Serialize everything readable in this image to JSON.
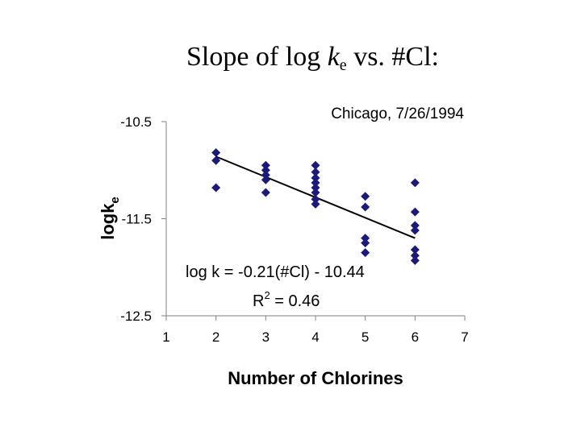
{
  "slide": {
    "title_prefix": "Slope of log ",
    "title_k": "k",
    "title_sub": "e",
    "title_suffix": " vs. #Cl:"
  },
  "chart_data": {
    "type": "scatter",
    "subtitle": "Chicago, 7/26/1994",
    "xlabel": "Number of Chlorines",
    "ylabel_main": "logk",
    "ylabel_sub": "e",
    "xlim": [
      1,
      7
    ],
    "ylim": [
      -12.5,
      -10.5
    ],
    "x_ticks": [
      1,
      2,
      3,
      4,
      5,
      6,
      7
    ],
    "y_ticks": [
      -10.5,
      -11.5,
      -12.5
    ],
    "x_tick_labels": [
      "1",
      "2",
      "3",
      "4",
      "5",
      "6",
      "7"
    ],
    "y_tick_labels": [
      "-10.5",
      "-11.5",
      "-12.5"
    ],
    "grid": false,
    "marker": "diamond",
    "marker_color": "#1a1a7a",
    "points": [
      {
        "x": 2,
        "y": -10.82
      },
      {
        "x": 2,
        "y": -10.9
      },
      {
        "x": 2,
        "y": -11.18
      },
      {
        "x": 3,
        "y": -10.95
      },
      {
        "x": 3,
        "y": -11.0
      },
      {
        "x": 3,
        "y": -11.05
      },
      {
        "x": 3,
        "y": -11.1
      },
      {
        "x": 3,
        "y": -11.23
      },
      {
        "x": 4,
        "y": -10.95
      },
      {
        "x": 4,
        "y": -11.02
      },
      {
        "x": 4,
        "y": -11.08
      },
      {
        "x": 4,
        "y": -11.13
      },
      {
        "x": 4,
        "y": -11.18
      },
      {
        "x": 4,
        "y": -11.23
      },
      {
        "x": 4,
        "y": -11.3
      },
      {
        "x": 4,
        "y": -11.35
      },
      {
        "x": 5,
        "y": -11.27
      },
      {
        "x": 5,
        "y": -11.38
      },
      {
        "x": 5,
        "y": -11.7
      },
      {
        "x": 5,
        "y": -11.75
      },
      {
        "x": 5,
        "y": -11.85
      },
      {
        "x": 6,
        "y": -11.13
      },
      {
        "x": 6,
        "y": -11.43
      },
      {
        "x": 6,
        "y": -11.57
      },
      {
        "x": 6,
        "y": -11.62
      },
      {
        "x": 6,
        "y": -11.82
      },
      {
        "x": 6,
        "y": -11.88
      },
      {
        "x": 6,
        "y": -11.93
      }
    ],
    "trendline": {
      "slope": -0.21,
      "intercept": -10.44,
      "x_range": [
        2,
        6
      ],
      "color": "#000000"
    },
    "equation_text": "log k = -0.21(#Cl) - 10.44",
    "r2_prefix": "R",
    "r2_sup": "2",
    "r2_suffix": " = 0.46"
  }
}
